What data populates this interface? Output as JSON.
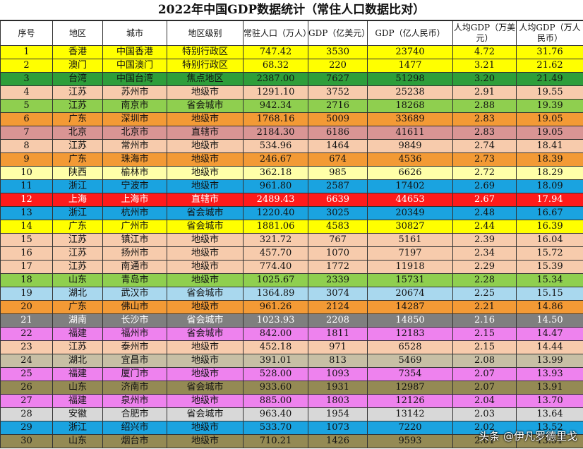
{
  "title": "2022年中国GDP数据统计（常住人口数据比对）",
  "headers": [
    "序号",
    "地区",
    "城市",
    "地区级别",
    "常驻人口（万人）",
    "GDP（亿美元）",
    "GDP（亿人民币）",
    "人均GDP（万美元）",
    "人均GDP（万人民币）"
  ],
  "rows": [
    {
      "color": "#ffff00",
      "cells": [
        "1",
        "香港",
        "中国香港",
        "特别行政区",
        "747.42",
        "3530",
        "23740",
        "4.72",
        "31.76"
      ]
    },
    {
      "color": "#ffff00",
      "cells": [
        "2",
        "澳门",
        "中国澳门",
        "特别行政区",
        "68.32",
        "220",
        "1477",
        "3.21",
        "21.62"
      ]
    },
    {
      "color": "#2e9e3a",
      "cells": [
        "3",
        "台湾",
        "中国台湾",
        "焦点地区",
        "2387.00",
        "7627",
        "51298",
        "3.20",
        "21.49"
      ]
    },
    {
      "color": "#f7cbac",
      "cells": [
        "4",
        "江苏",
        "苏州市",
        "地级市",
        "1291.10",
        "3752",
        "25238",
        "2.91",
        "19.55"
      ]
    },
    {
      "color": "#8fcf4f",
      "cells": [
        "5",
        "江苏",
        "南京市",
        "省会城市",
        "942.34",
        "2716",
        "18268",
        "2.88",
        "19.39"
      ]
    },
    {
      "color": "#f39a35",
      "cells": [
        "6",
        "广东",
        "深圳市",
        "地级市",
        "1768.16",
        "5009",
        "33689",
        "2.83",
        "19.05"
      ]
    },
    {
      "color": "#d99594",
      "cells": [
        "7",
        "北京",
        "北京市",
        "直辖市",
        "2184.30",
        "6186",
        "41611",
        "2.83",
        "19.05"
      ]
    },
    {
      "color": "#f7cbac",
      "cells": [
        "8",
        "江苏",
        "常州市",
        "地级市",
        "534.96",
        "1464",
        "9849",
        "2.74",
        "18.41"
      ]
    },
    {
      "color": "#f39a35",
      "cells": [
        "9",
        "广东",
        "珠海市",
        "地级市",
        "246.67",
        "674",
        "4536",
        "2.73",
        "18.39"
      ]
    },
    {
      "color": "#ffffa8",
      "cells": [
        "10",
        "陕西",
        "榆林市",
        "地级市",
        "362.18",
        "985",
        "6626",
        "2.72",
        "18.29"
      ]
    },
    {
      "color": "#1aa3e0",
      "cells": [
        "11",
        "浙江",
        "宁波市",
        "地级市",
        "961.80",
        "2587",
        "17402",
        "2.69",
        "18.09"
      ]
    },
    {
      "color": "#ff1a1a",
      "cells": [
        "12",
        "上海",
        "上海市",
        "直辖市",
        "2489.43",
        "6639",
        "44653",
        "2.67",
        "17.94"
      ]
    },
    {
      "color": "#1aa3e0",
      "cells": [
        "13",
        "浙江",
        "杭州市",
        "省会城市",
        "1220.40",
        "3025",
        "20349",
        "2.48",
        "16.67"
      ]
    },
    {
      "color": "#ffff00",
      "cells": [
        "14",
        "广东",
        "广州市",
        "省会城市",
        "1881.06",
        "4583",
        "30827",
        "2.44",
        "16.39"
      ]
    },
    {
      "color": "#f7cbac",
      "cells": [
        "15",
        "江苏",
        "镇江市",
        "地级市",
        "321.72",
        "767",
        "5161",
        "2.39",
        "16.04"
      ]
    },
    {
      "color": "#f7cbac",
      "cells": [
        "16",
        "江苏",
        "扬州市",
        "地级市",
        "457.70",
        "1070",
        "7197",
        "2.34",
        "15.72"
      ]
    },
    {
      "color": "#f7cbac",
      "cells": [
        "17",
        "江苏",
        "南通市",
        "地级市",
        "774.40",
        "1772",
        "11918",
        "2.29",
        "15.39"
      ]
    },
    {
      "color": "#8fcf4f",
      "cells": [
        "18",
        "山东",
        "青岛市",
        "地级市",
        "1025.67",
        "2339",
        "15731",
        "2.28",
        "15.34"
      ]
    },
    {
      "color": "#a9d8ee",
      "cells": [
        "19",
        "湖北",
        "武汉市",
        "省会城市",
        "1364.89",
        "3074",
        "20674",
        "2.25",
        "15.15"
      ]
    },
    {
      "color": "#f39a35",
      "cells": [
        "20",
        "广东",
        "佛山市",
        "地级市",
        "961.26",
        "2124",
        "14287",
        "2.21",
        "14.86"
      ]
    },
    {
      "color": "#7f7f7f",
      "cells": [
        "21",
        "湖南",
        "长沙市",
        "省会城市",
        "1023.93",
        "2208",
        "14850",
        "2.16",
        "14.50"
      ]
    },
    {
      "color": "#ee82ee",
      "cells": [
        "22",
        "福建",
        "福州市",
        "省会城市",
        "842.00",
        "1811",
        "12183",
        "2.15",
        "14.47"
      ]
    },
    {
      "color": "#f7cbac",
      "cells": [
        "23",
        "江苏",
        "泰州市",
        "地级市",
        "452.18",
        "971",
        "6528",
        "2.15",
        "14.44"
      ]
    },
    {
      "color": "#c7bfa5",
      "cells": [
        "24",
        "湖北",
        "宜昌市",
        "地级市",
        "391.01",
        "813",
        "5469",
        "2.08",
        "13.99"
      ]
    },
    {
      "color": "#ee82ee",
      "cells": [
        "25",
        "福建",
        "厦门市",
        "地级市",
        "528.00",
        "1093",
        "7354",
        "2.07",
        "13.93"
      ]
    },
    {
      "color": "#948a54",
      "cells": [
        "26",
        "山东",
        "济南市",
        "省会城市",
        "933.60",
        "1931",
        "12987",
        "2.07",
        "13.91"
      ]
    },
    {
      "color": "#ee82ee",
      "cells": [
        "27",
        "福建",
        "泉州市",
        "地级市",
        "885.00",
        "1803",
        "12126",
        "2.04",
        "13.70"
      ]
    },
    {
      "color": "#d8d8d8",
      "cells": [
        "28",
        "安徽",
        "合肥市",
        "省会城市",
        "963.40",
        "1954",
        "13142",
        "2.03",
        "13.64"
      ]
    },
    {
      "color": "#1aa3e0",
      "cells": [
        "29",
        "浙江",
        "绍兴市",
        "地级市",
        "533.70",
        "1073",
        "7220",
        "2.02",
        "13.52"
      ]
    },
    {
      "color": "#948a54",
      "cells": [
        "30",
        "山东",
        "烟台市",
        "地级市",
        "710.21",
        "1426",
        "9593",
        "2.01",
        "13.51"
      ]
    }
  ],
  "dark_rows": [
    "12",
    "21"
  ],
  "watermark": "头条 @伊凡罗德里戈"
}
